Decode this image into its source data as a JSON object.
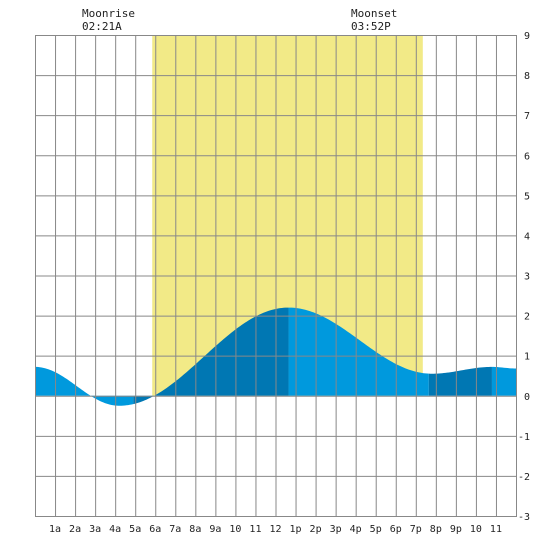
{
  "chart_data": {
    "type": "area",
    "moonrise": {
      "label": "Moonrise",
      "time": "02:21A"
    },
    "moonset": {
      "label": "Moonset",
      "time": "03:52P"
    },
    "x_tick_labels": [
      "1a",
      "2a",
      "3a",
      "4a",
      "5a",
      "6a",
      "7a",
      "8a",
      "9a",
      "10",
      "11",
      "12",
      "1p",
      "2p",
      "3p",
      "4p",
      "5p",
      "6p",
      "7p",
      "8p",
      "9p",
      "10",
      "11"
    ],
    "xlim": [
      0,
      24
    ],
    "ylim": [
      -3,
      9
    ],
    "y_tick_labels": [
      "9",
      "8",
      "7",
      "6",
      "5",
      "4",
      "3",
      "2",
      "1",
      "0",
      "-1",
      "-2",
      "-3"
    ],
    "y_tick_values": [
      9,
      8,
      7,
      6,
      5,
      4,
      3,
      2,
      1,
      0,
      -1,
      -2,
      -3
    ],
    "grid": true,
    "daylight_band_hours": [
      5.85,
      19.35
    ],
    "tide_extremes": [
      {
        "hour": 0.0,
        "height": 0.72
      },
      {
        "hour": 4.2,
        "height": -0.25
      },
      {
        "hour": 12.65,
        "height": 2.2
      },
      {
        "hour": 19.8,
        "height": 0.55
      },
      {
        "hour": 22.8,
        "height": 0.72
      },
      {
        "hour": 24.0,
        "height": 0.68
      }
    ],
    "shade_boundaries_hours": [
      4.9,
      12.65,
      19.65,
      22.8
    ],
    "colors": {
      "daylight": "#f2ea87",
      "tide_light": "#0099dd",
      "tide_dark": "#0077b3",
      "grid": "#888888",
      "background": "#ffffff"
    }
  }
}
